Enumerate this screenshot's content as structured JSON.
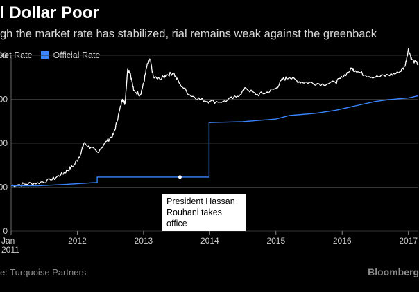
{
  "title": "l Dollar Poor",
  "subtitle": "gh the market rate has stabilized, rial remains weak against the greenback",
  "source": "e: Turquoise Partners",
  "brand": "Bloomberg",
  "colors": {
    "market": "#ffffff",
    "official": "#3a86ff",
    "grid": "#333333",
    "background": "#000000"
  },
  "chart_data": {
    "type": "line",
    "title": "l Dollar Poor",
    "subtitle": "gh the market rate has stabilized, rial remains weak against the greenback",
    "xlim": [
      2011.0,
      2017.15
    ],
    "ylim": [
      0,
      40000
    ],
    "ytick_values": [
      0,
      10000,
      20000,
      30000,
      40000
    ],
    "ytick_labels": [
      "0",
      "000",
      "000",
      "000",
      "000"
    ],
    "xticks": [
      {
        "x": 2011.0,
        "label": "Jan",
        "label2": "2011"
      },
      {
        "x": 2012.0,
        "label": "2012"
      },
      {
        "x": 2013.0,
        "label": "2013"
      },
      {
        "x": 2014.0,
        "label": "2014"
      },
      {
        "x": 2015.0,
        "label": "2015"
      },
      {
        "x": 2016.0,
        "label": "2016"
      },
      {
        "x": 2017.0,
        "label": "2017"
      }
    ],
    "grid": true,
    "legend_position": "top-left",
    "series": [
      {
        "name": "ket Rate",
        "color": "#ffffff",
        "points": [
          [
            2011.0,
            10400
          ],
          [
            2011.2,
            10700
          ],
          [
            2011.4,
            11000
          ],
          [
            2011.6,
            11600
          ],
          [
            2011.75,
            12800
          ],
          [
            2011.85,
            13800
          ],
          [
            2011.95,
            15000
          ],
          [
            2012.05,
            17500
          ],
          [
            2012.1,
            20000
          ],
          [
            2012.2,
            19000
          ],
          [
            2012.3,
            18000
          ],
          [
            2012.45,
            20500
          ],
          [
            2012.55,
            22000
          ],
          [
            2012.6,
            25000
          ],
          [
            2012.68,
            30000
          ],
          [
            2012.72,
            29000
          ],
          [
            2012.76,
            37000
          ],
          [
            2012.8,
            36000
          ],
          [
            2012.85,
            32000
          ],
          [
            2012.95,
            31000
          ],
          [
            2013.0,
            33500
          ],
          [
            2013.05,
            37500
          ],
          [
            2013.1,
            39000
          ],
          [
            2013.15,
            35000
          ],
          [
            2013.25,
            34500
          ],
          [
            2013.35,
            35500
          ],
          [
            2013.45,
            36000
          ],
          [
            2013.55,
            33500
          ],
          [
            2013.7,
            31000
          ],
          [
            2013.85,
            30000
          ],
          [
            2014.0,
            29500
          ],
          [
            2014.2,
            29500
          ],
          [
            2014.4,
            30500
          ],
          [
            2014.55,
            32500
          ],
          [
            2014.7,
            31000
          ],
          [
            2014.85,
            31500
          ],
          [
            2015.0,
            32500
          ],
          [
            2015.1,
            34500
          ],
          [
            2015.2,
            35000
          ],
          [
            2015.35,
            34000
          ],
          [
            2015.5,
            33800
          ],
          [
            2015.7,
            33500
          ],
          [
            2015.9,
            33800
          ],
          [
            2016.0,
            35000
          ],
          [
            2016.15,
            37000
          ],
          [
            2016.2,
            36500
          ],
          [
            2016.35,
            35500
          ],
          [
            2016.5,
            35000
          ],
          [
            2016.7,
            35500
          ],
          [
            2016.85,
            36000
          ],
          [
            2016.95,
            37500
          ],
          [
            2017.0,
            41500
          ],
          [
            2017.05,
            39000
          ],
          [
            2017.15,
            38000
          ]
        ]
      },
      {
        "name": "Official Rate",
        "color": "#3a86ff",
        "points": [
          [
            2011.0,
            10300
          ],
          [
            2011.4,
            10300
          ],
          [
            2011.8,
            10600
          ],
          [
            2012.25,
            11000
          ],
          [
            2012.3,
            11000
          ],
          [
            2012.3,
            12300
          ],
          [
            2013.99,
            12300
          ],
          [
            2013.99,
            24700
          ],
          [
            2014.5,
            24900
          ],
          [
            2015.0,
            25500
          ],
          [
            2015.2,
            26300
          ],
          [
            2015.6,
            26800
          ],
          [
            2015.9,
            27500
          ],
          [
            2016.2,
            28500
          ],
          [
            2016.5,
            29500
          ],
          [
            2016.7,
            29900
          ],
          [
            2017.0,
            30300
          ],
          [
            2017.15,
            30800
          ]
        ]
      }
    ],
    "annotations": [
      {
        "x": 2013.55,
        "y": 12300,
        "text_line1": "President Hassan",
        "text_line2": "Rouhani takes office"
      }
    ]
  }
}
